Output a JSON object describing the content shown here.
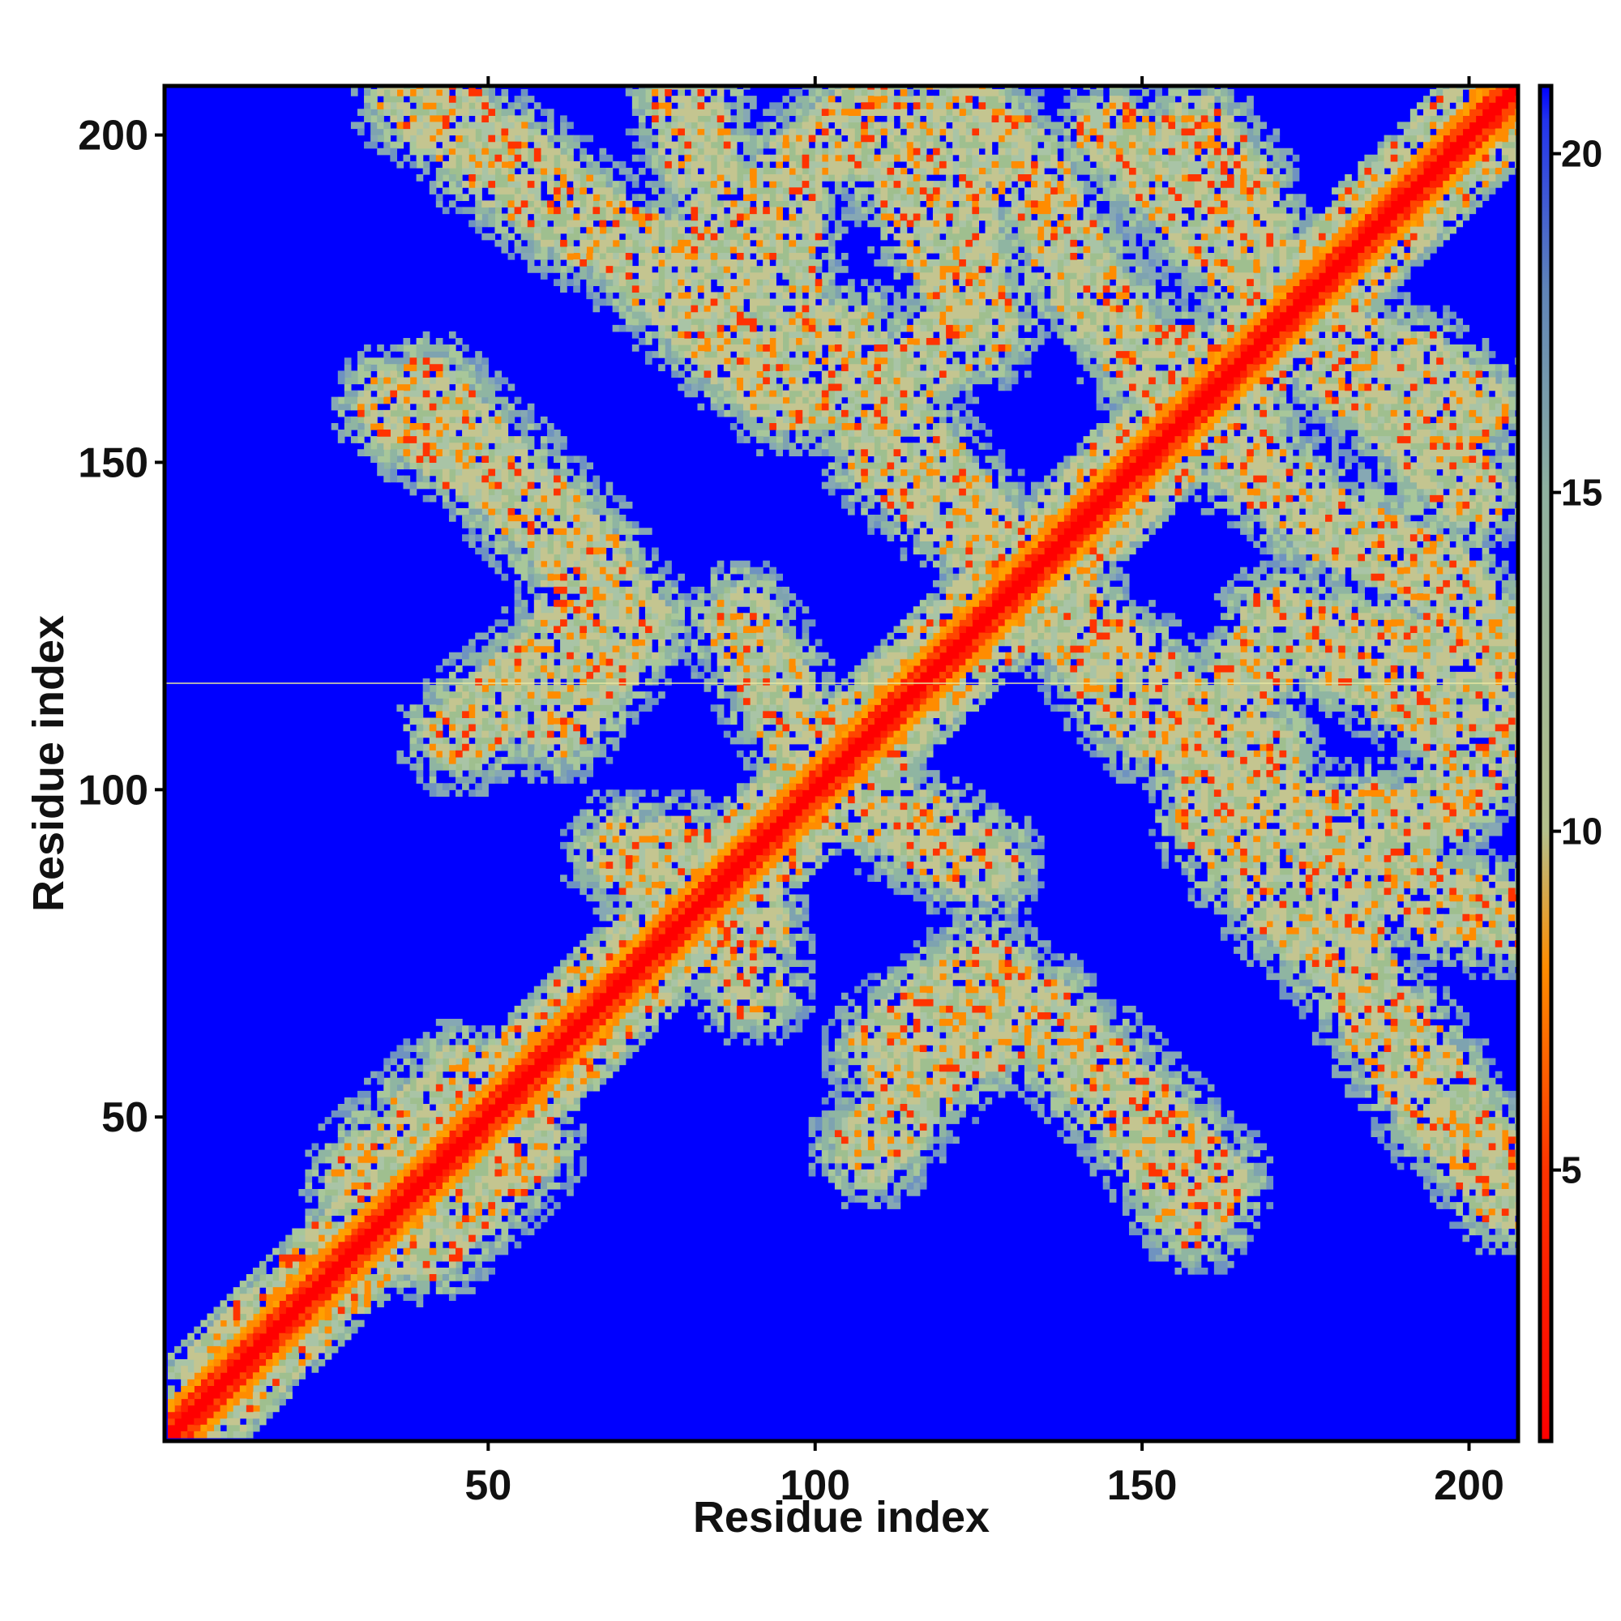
{
  "chart_data": {
    "type": "heatmap",
    "title": "",
    "xlabel": "Residue index",
    "ylabel": "Residue index",
    "n_residues": 207,
    "xlim": [
      1,
      207
    ],
    "ylim": [
      1,
      207
    ],
    "x_ticks": [
      50,
      100,
      150,
      200
    ],
    "y_ticks": [
      50,
      100,
      150,
      200
    ],
    "colorbar": {
      "ticks": [
        5,
        10,
        15,
        20
      ],
      "range": [
        1,
        21
      ],
      "stops": [
        {
          "value": 1,
          "color": "#ff0000"
        },
        {
          "value": 5,
          "color": "#ff3300"
        },
        {
          "value": 8,
          "color": "#ff8c00"
        },
        {
          "value": 10,
          "color": "#b4c08c"
        },
        {
          "value": 15,
          "color": "#8fb1a0"
        },
        {
          "value": 18,
          "color": "#5f84b8"
        },
        {
          "value": 20.5,
          "color": "#2233ee"
        },
        {
          "value": 21,
          "color": "#0000ff"
        }
      ]
    },
    "background_color": "#0000ff",
    "diagonal": {
      "from": 1,
      "to": 207,
      "core_color": "#ff0000",
      "ring_color": "#ff8c00"
    },
    "contact_bands": [
      {
        "name": "band-1",
        "path": [
          [
            38,
            205
          ],
          [
            54,
            195
          ],
          [
            70,
            183
          ],
          [
            83,
            170
          ],
          [
            95,
            160
          ]
        ]
      },
      {
        "name": "band-2",
        "path": [
          [
            35,
            158
          ],
          [
            50,
            148
          ],
          [
            63,
            135
          ],
          [
            72,
            125
          ],
          [
            60,
            110
          ]
        ]
      },
      {
        "name": "band-3",
        "path": [
          [
            85,
            178
          ],
          [
            97,
            195
          ],
          [
            108,
            203
          ]
        ]
      },
      {
        "name": "band-4",
        "path": [
          [
            110,
            202
          ],
          [
            122,
            188
          ],
          [
            123,
            170
          ],
          [
            108,
            160
          ],
          [
            110,
            150
          ],
          [
            125,
            138
          ],
          [
            140,
            125
          ],
          [
            155,
            112
          ],
          [
            168,
            105
          ]
        ]
      },
      {
        "name": "band-5",
        "path": [
          [
            145,
            200
          ],
          [
            160,
            185
          ],
          [
            175,
            168
          ],
          [
            190,
            165
          ],
          [
            200,
            158
          ]
        ]
      },
      {
        "name": "band-6",
        "path": [
          [
            155,
            165
          ],
          [
            165,
            150
          ],
          [
            178,
            140
          ],
          [
            195,
            132
          ],
          [
            205,
            120
          ]
        ]
      },
      {
        "name": "band-7",
        "path": [
          [
            170,
            125
          ],
          [
            180,
            120
          ],
          [
            195,
            112
          ],
          [
            200,
            105
          ]
        ]
      },
      {
        "name": "band-8",
        "path": [
          [
            100,
            102
          ],
          [
            112,
            95
          ],
          [
            125,
            88
          ]
        ]
      },
      {
        "name": "band-9",
        "path": [
          [
            160,
            100
          ],
          [
            175,
            95
          ],
          [
            185,
            88
          ],
          [
            195,
            82
          ],
          [
            205,
            80
          ]
        ]
      },
      {
        "name": "band-10",
        "path": [
          [
            185,
            95
          ],
          [
            180,
            80
          ],
          [
            185,
            65
          ],
          [
            195,
            50
          ],
          [
            205,
            42
          ]
        ]
      },
      {
        "name": "band-11",
        "path": [
          [
            108,
            45
          ],
          [
            120,
            60
          ],
          [
            135,
            65
          ],
          [
            150,
            50
          ],
          [
            160,
            40
          ]
        ]
      },
      {
        "name": "band-12",
        "path": [
          [
            70,
            90
          ],
          [
            80,
            83
          ],
          [
            90,
            78
          ]
        ]
      },
      {
        "name": "band-13",
        "path": [
          [
            40,
            30
          ],
          [
            50,
            40
          ],
          [
            55,
            45
          ]
        ]
      }
    ]
  }
}
